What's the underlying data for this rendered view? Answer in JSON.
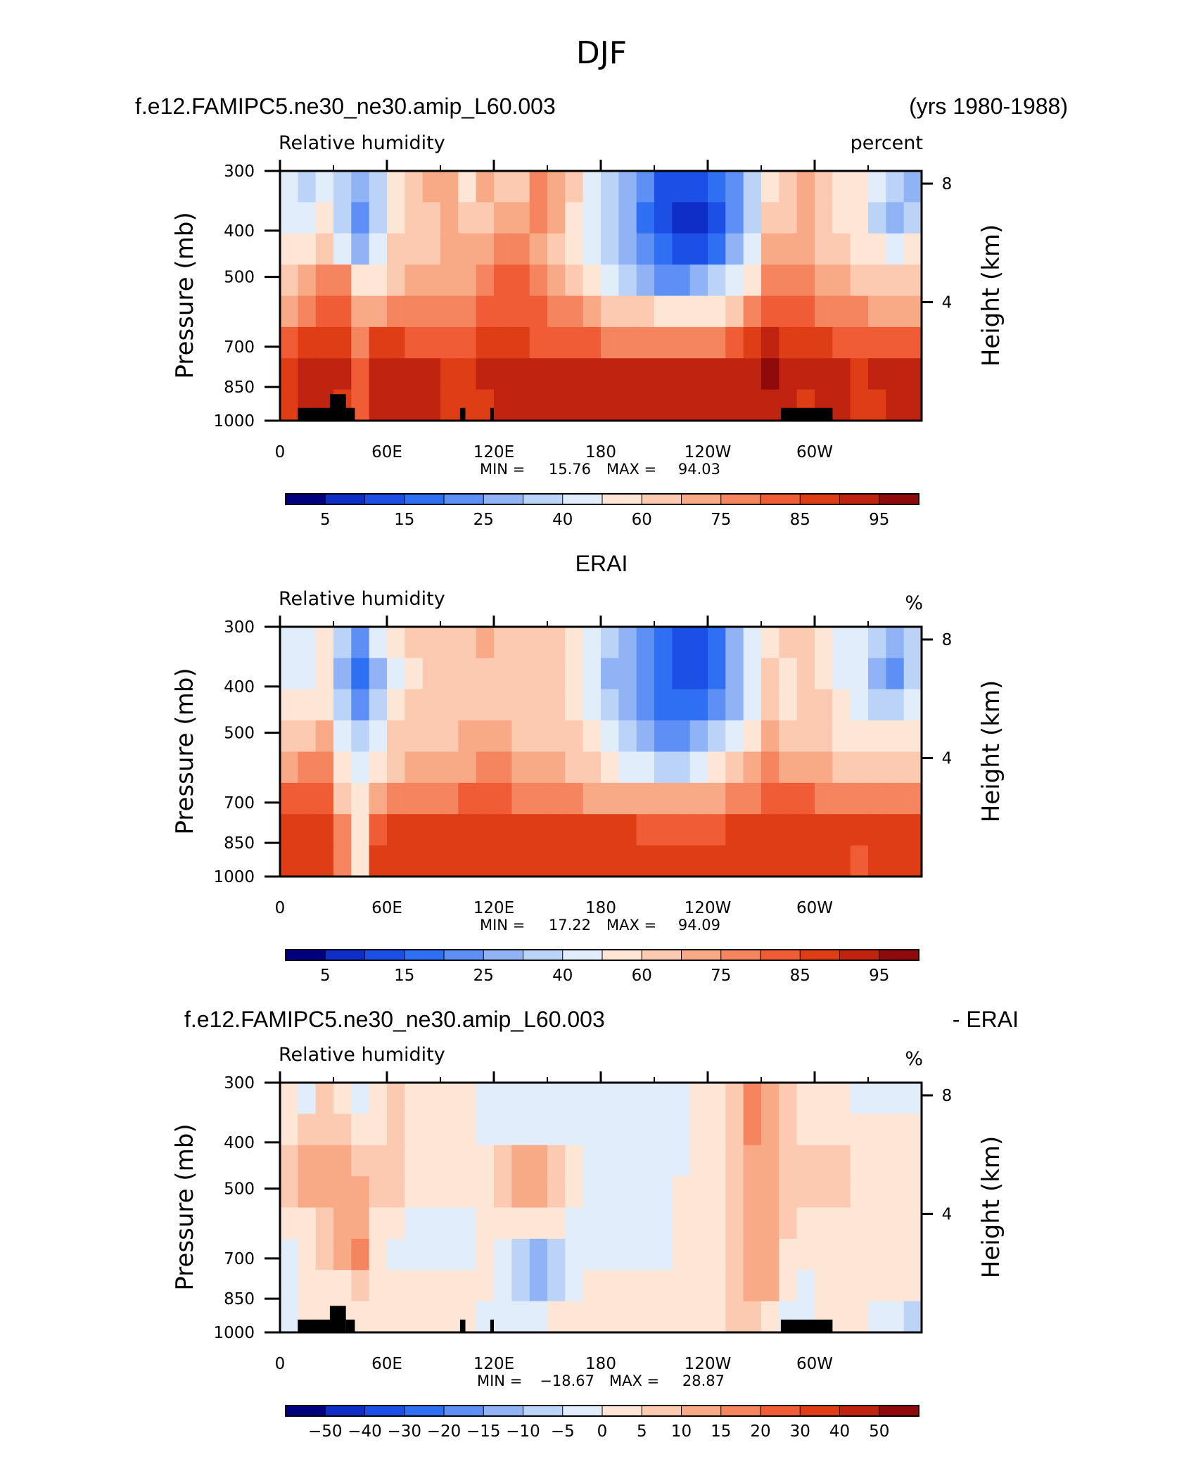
{
  "main_title": "DJF",
  "colors": {
    "scale_abs": [
      "#00007f",
      "#0f2ec8",
      "#1c4fe6",
      "#2f6ff2",
      "#5d8ff4",
      "#90b3f6",
      "#bcd3f8",
      "#e2edfb",
      "#fde6d6",
      "#fbcab0",
      "#f8a986",
      "#f5855f",
      "#f05c35",
      "#de3d16",
      "#c12311",
      "#8f0a0a"
    ],
    "scale_diff": [
      "#00007f",
      "#0f2ec8",
      "#1c4fe6",
      "#2f6ff2",
      "#5d8ff4",
      "#90b3f6",
      "#bcd3f8",
      "#e2edfb",
      "#fde6d6",
      "#fbcab0",
      "#f8a986",
      "#f5855f",
      "#f05c35",
      "#de3d16",
      "#c12311",
      "#8f0a0a"
    ],
    "land": "#000000"
  },
  "chart_data": [
    {
      "type": "heatmap",
      "header_left": "f.e12.FAMIPC5.ne30_ne30.amip_L60.003",
      "header_right": "(yrs 1980-1988)",
      "title": "Relative humidity",
      "units": "percent",
      "ylabel": "Pressure (mb)",
      "ylabel_right": "Height (km)",
      "yticks": [
        "300",
        "400",
        "500",
        "700",
        "850",
        "1000"
      ],
      "yticks_right": [
        "8",
        "4"
      ],
      "xticks": [
        "0",
        "60E",
        "120E",
        "180",
        "120W",
        "60W"
      ],
      "min_label": "MIN =",
      "min": "15.76",
      "max_label": "MAX =",
      "max": "94.03",
      "colorbar_labels": [
        "5",
        "15",
        "25",
        "40",
        "60",
        "75",
        "85",
        "95"
      ],
      "scale": "abs",
      "land": true,
      "field": [
        [
          7,
          6,
          7,
          6,
          5,
          6,
          8,
          9,
          10,
          10,
          8,
          10,
          9,
          9,
          11,
          10,
          9,
          7,
          6,
          5,
          4,
          2,
          2,
          2,
          3,
          4,
          6,
          8,
          9,
          10,
          9,
          8,
          8,
          7,
          6,
          5
        ],
        [
          7,
          7,
          8,
          6,
          4,
          6,
          8,
          9,
          9,
          10,
          9,
          9,
          10,
          10,
          11,
          10,
          8,
          7,
          6,
          5,
          3,
          2,
          1,
          1,
          2,
          4,
          6,
          9,
          9,
          10,
          9,
          8,
          8,
          6,
          5,
          6
        ],
        [
          8,
          8,
          9,
          7,
          5,
          7,
          9,
          9,
          9,
          10,
          10,
          10,
          11,
          11,
          10,
          9,
          8,
          7,
          6,
          5,
          4,
          3,
          2,
          2,
          3,
          5,
          7,
          10,
          10,
          10,
          9,
          9,
          8,
          8,
          7,
          8
        ],
        [
          9,
          10,
          11,
          11,
          8,
          8,
          9,
          10,
          10,
          10,
          10,
          11,
          12,
          12,
          11,
          10,
          9,
          8,
          7,
          6,
          5,
          4,
          4,
          5,
          6,
          7,
          8,
          11,
          11,
          11,
          10,
          10,
          9,
          9,
          9,
          9
        ],
        [
          10,
          11,
          12,
          12,
          10,
          10,
          11,
          11,
          11,
          11,
          11,
          12,
          12,
          12,
          12,
          11,
          11,
          10,
          9,
          9,
          9,
          8,
          8,
          8,
          8,
          9,
          11,
          12,
          12,
          12,
          11,
          11,
          11,
          10,
          10,
          10
        ],
        [
          12,
          13,
          13,
          13,
          11,
          13,
          13,
          12,
          12,
          12,
          12,
          13,
          13,
          13,
          12,
          12,
          12,
          12,
          11,
          11,
          11,
          11,
          11,
          11,
          11,
          12,
          13,
          14,
          13,
          13,
          13,
          12,
          12,
          12,
          12,
          12
        ],
        [
          13,
          14,
          14,
          14,
          12,
          14,
          14,
          14,
          14,
          13,
          13,
          14,
          14,
          14,
          14,
          14,
          14,
          14,
          14,
          14,
          14,
          14,
          14,
          14,
          14,
          14,
          14,
          15,
          14,
          14,
          14,
          14,
          13,
          14,
          14,
          14
        ],
        [
          13,
          14,
          14,
          13,
          12,
          14,
          14,
          14,
          14,
          13,
          13,
          13,
          14,
          14,
          14,
          14,
          14,
          14,
          14,
          14,
          14,
          14,
          14,
          14,
          14,
          14,
          14,
          14,
          14,
          13,
          14,
          14,
          13,
          13,
          14,
          14
        ]
      ]
    },
    {
      "type": "heatmap",
      "header_center": "ERAI",
      "title": "Relative humidity",
      "units": "%",
      "ylabel": "Pressure (mb)",
      "ylabel_right": "Height (km)",
      "yticks": [
        "300",
        "400",
        "500",
        "700",
        "850",
        "1000"
      ],
      "yticks_right": [
        "8",
        "4"
      ],
      "xticks": [
        "0",
        "60E",
        "120E",
        "180",
        "120W",
        "60W"
      ],
      "min_label": "MIN =",
      "min": "17.22",
      "max_label": "MAX =",
      "max": "94.09",
      "colorbar_labels": [
        "5",
        "15",
        "25",
        "40",
        "60",
        "75",
        "85",
        "95"
      ],
      "scale": "abs",
      "land": false,
      "field": [
        [
          7,
          7,
          8,
          6,
          4,
          7,
          8,
          9,
          9,
          9,
          9,
          10,
          9,
          9,
          9,
          9,
          8,
          7,
          6,
          5,
          4,
          3,
          2,
          2,
          3,
          5,
          7,
          8,
          9,
          9,
          8,
          7,
          7,
          6,
          5,
          6
        ],
        [
          7,
          7,
          8,
          5,
          3,
          5,
          7,
          8,
          9,
          9,
          9,
          9,
          9,
          9,
          9,
          9,
          8,
          7,
          5,
          5,
          4,
          3,
          2,
          2,
          3,
          5,
          7,
          9,
          8,
          9,
          8,
          7,
          7,
          5,
          4,
          6
        ],
        [
          8,
          8,
          8,
          6,
          4,
          6,
          8,
          9,
          9,
          9,
          9,
          9,
          9,
          9,
          9,
          9,
          8,
          7,
          6,
          5,
          4,
          3,
          3,
          3,
          4,
          5,
          7,
          9,
          8,
          9,
          9,
          8,
          7,
          6,
          6,
          7
        ],
        [
          9,
          9,
          10,
          7,
          6,
          7,
          9,
          9,
          9,
          9,
          10,
          10,
          10,
          9,
          9,
          9,
          9,
          8,
          7,
          6,
          5,
          4,
          4,
          5,
          6,
          7,
          8,
          10,
          9,
          9,
          9,
          8,
          8,
          8,
          8,
          8
        ],
        [
          10,
          11,
          11,
          8,
          7,
          8,
          9,
          10,
          10,
          10,
          10,
          11,
          11,
          10,
          10,
          10,
          9,
          9,
          8,
          7,
          7,
          6,
          6,
          7,
          8,
          9,
          10,
          11,
          10,
          10,
          10,
          9,
          9,
          9,
          9,
          9
        ],
        [
          12,
          12,
          12,
          9,
          8,
          10,
          11,
          11,
          11,
          11,
          12,
          12,
          12,
          11,
          11,
          11,
          11,
          10,
          10,
          10,
          10,
          10,
          10,
          10,
          10,
          11,
          11,
          12,
          12,
          12,
          11,
          11,
          11,
          11,
          11,
          11
        ],
        [
          13,
          13,
          13,
          11,
          8,
          12,
          13,
          13,
          13,
          13,
          13,
          13,
          13,
          13,
          13,
          13,
          13,
          13,
          13,
          13,
          12,
          12,
          12,
          12,
          12,
          13,
          13,
          13,
          13,
          13,
          13,
          13,
          13,
          13,
          13,
          13
        ],
        [
          13,
          13,
          13,
          11,
          8,
          13,
          13,
          13,
          13,
          13,
          13,
          13,
          13,
          13,
          13,
          13,
          13,
          13,
          13,
          13,
          13,
          13,
          13,
          13,
          13,
          13,
          13,
          13,
          13,
          13,
          13,
          13,
          12,
          13,
          13,
          13
        ]
      ]
    },
    {
      "type": "heatmap",
      "header_left": "f.e12.FAMIPC5.ne30_ne30.amip_L60.003",
      "header_right": "- ERAI",
      "title": "Relative humidity",
      "units": "%",
      "ylabel": "Pressure (mb)",
      "ylabel_right": "Height (km)",
      "yticks": [
        "300",
        "400",
        "500",
        "700",
        "850",
        "1000"
      ],
      "yticks_right": [
        "8",
        "4"
      ],
      "xticks": [
        "0",
        "60E",
        "120E",
        "180",
        "120W",
        "60W"
      ],
      "min_label": "MIN =",
      "min": "−18.67",
      "max_label": "MAX =",
      "max": "28.87",
      "colorbar_labels": [
        "−50",
        "−40",
        "−30",
        "−20",
        "−15",
        "−10",
        "−5",
        "0",
        "5",
        "10",
        "15",
        "20",
        "30",
        "40",
        "50"
      ],
      "scale": "diff",
      "land": true,
      "field": [
        [
          8,
          7,
          9,
          8,
          7,
          8,
          9,
          8,
          8,
          8,
          8,
          7,
          7,
          7,
          7,
          7,
          7,
          7,
          7,
          7,
          7,
          7,
          7,
          8,
          8,
          9,
          11,
          10,
          9,
          8,
          8,
          8,
          7,
          7,
          7,
          7
        ],
        [
          8,
          9,
          9,
          9,
          8,
          8,
          9,
          8,
          8,
          8,
          8,
          7,
          7,
          7,
          7,
          7,
          7,
          7,
          7,
          7,
          7,
          7,
          7,
          8,
          8,
          9,
          11,
          10,
          9,
          8,
          8,
          8,
          8,
          8,
          8,
          8
        ],
        [
          9,
          10,
          10,
          10,
          9,
          9,
          9,
          8,
          8,
          8,
          8,
          8,
          9,
          10,
          10,
          9,
          8,
          7,
          7,
          7,
          7,
          7,
          7,
          8,
          8,
          9,
          10,
          10,
          9,
          9,
          9,
          9,
          8,
          8,
          8,
          8
        ],
        [
          9,
          10,
          10,
          10,
          10,
          9,
          9,
          8,
          8,
          8,
          8,
          8,
          9,
          10,
          10,
          9,
          8,
          7,
          7,
          7,
          7,
          7,
          8,
          8,
          8,
          9,
          10,
          10,
          9,
          9,
          9,
          9,
          8,
          8,
          8,
          8
        ],
        [
          8,
          8,
          9,
          10,
          10,
          8,
          8,
          7,
          7,
          7,
          7,
          8,
          8,
          8,
          8,
          8,
          7,
          7,
          7,
          7,
          7,
          7,
          8,
          8,
          8,
          9,
          10,
          10,
          9,
          8,
          8,
          8,
          8,
          8,
          8,
          8
        ],
        [
          7,
          8,
          9,
          10,
          11,
          8,
          7,
          7,
          7,
          7,
          7,
          8,
          7,
          6,
          5,
          6,
          7,
          7,
          7,
          7,
          7,
          7,
          8,
          8,
          8,
          9,
          10,
          10,
          8,
          8,
          8,
          8,
          8,
          8,
          8,
          8
        ],
        [
          7,
          8,
          8,
          8,
          9,
          8,
          8,
          8,
          8,
          8,
          8,
          8,
          7,
          6,
          5,
          6,
          7,
          8,
          8,
          8,
          8,
          8,
          8,
          8,
          8,
          9,
          10,
          10,
          8,
          7,
          8,
          8,
          8,
          8,
          8,
          8
        ],
        [
          7,
          8,
          8,
          8,
          8,
          8,
          8,
          8,
          8,
          8,
          8,
          7,
          7,
          7,
          7,
          8,
          8,
          8,
          8,
          8,
          8,
          8,
          8,
          8,
          8,
          9,
          9,
          8,
          7,
          7,
          8,
          8,
          8,
          7,
          7,
          6
        ]
      ]
    }
  ]
}
